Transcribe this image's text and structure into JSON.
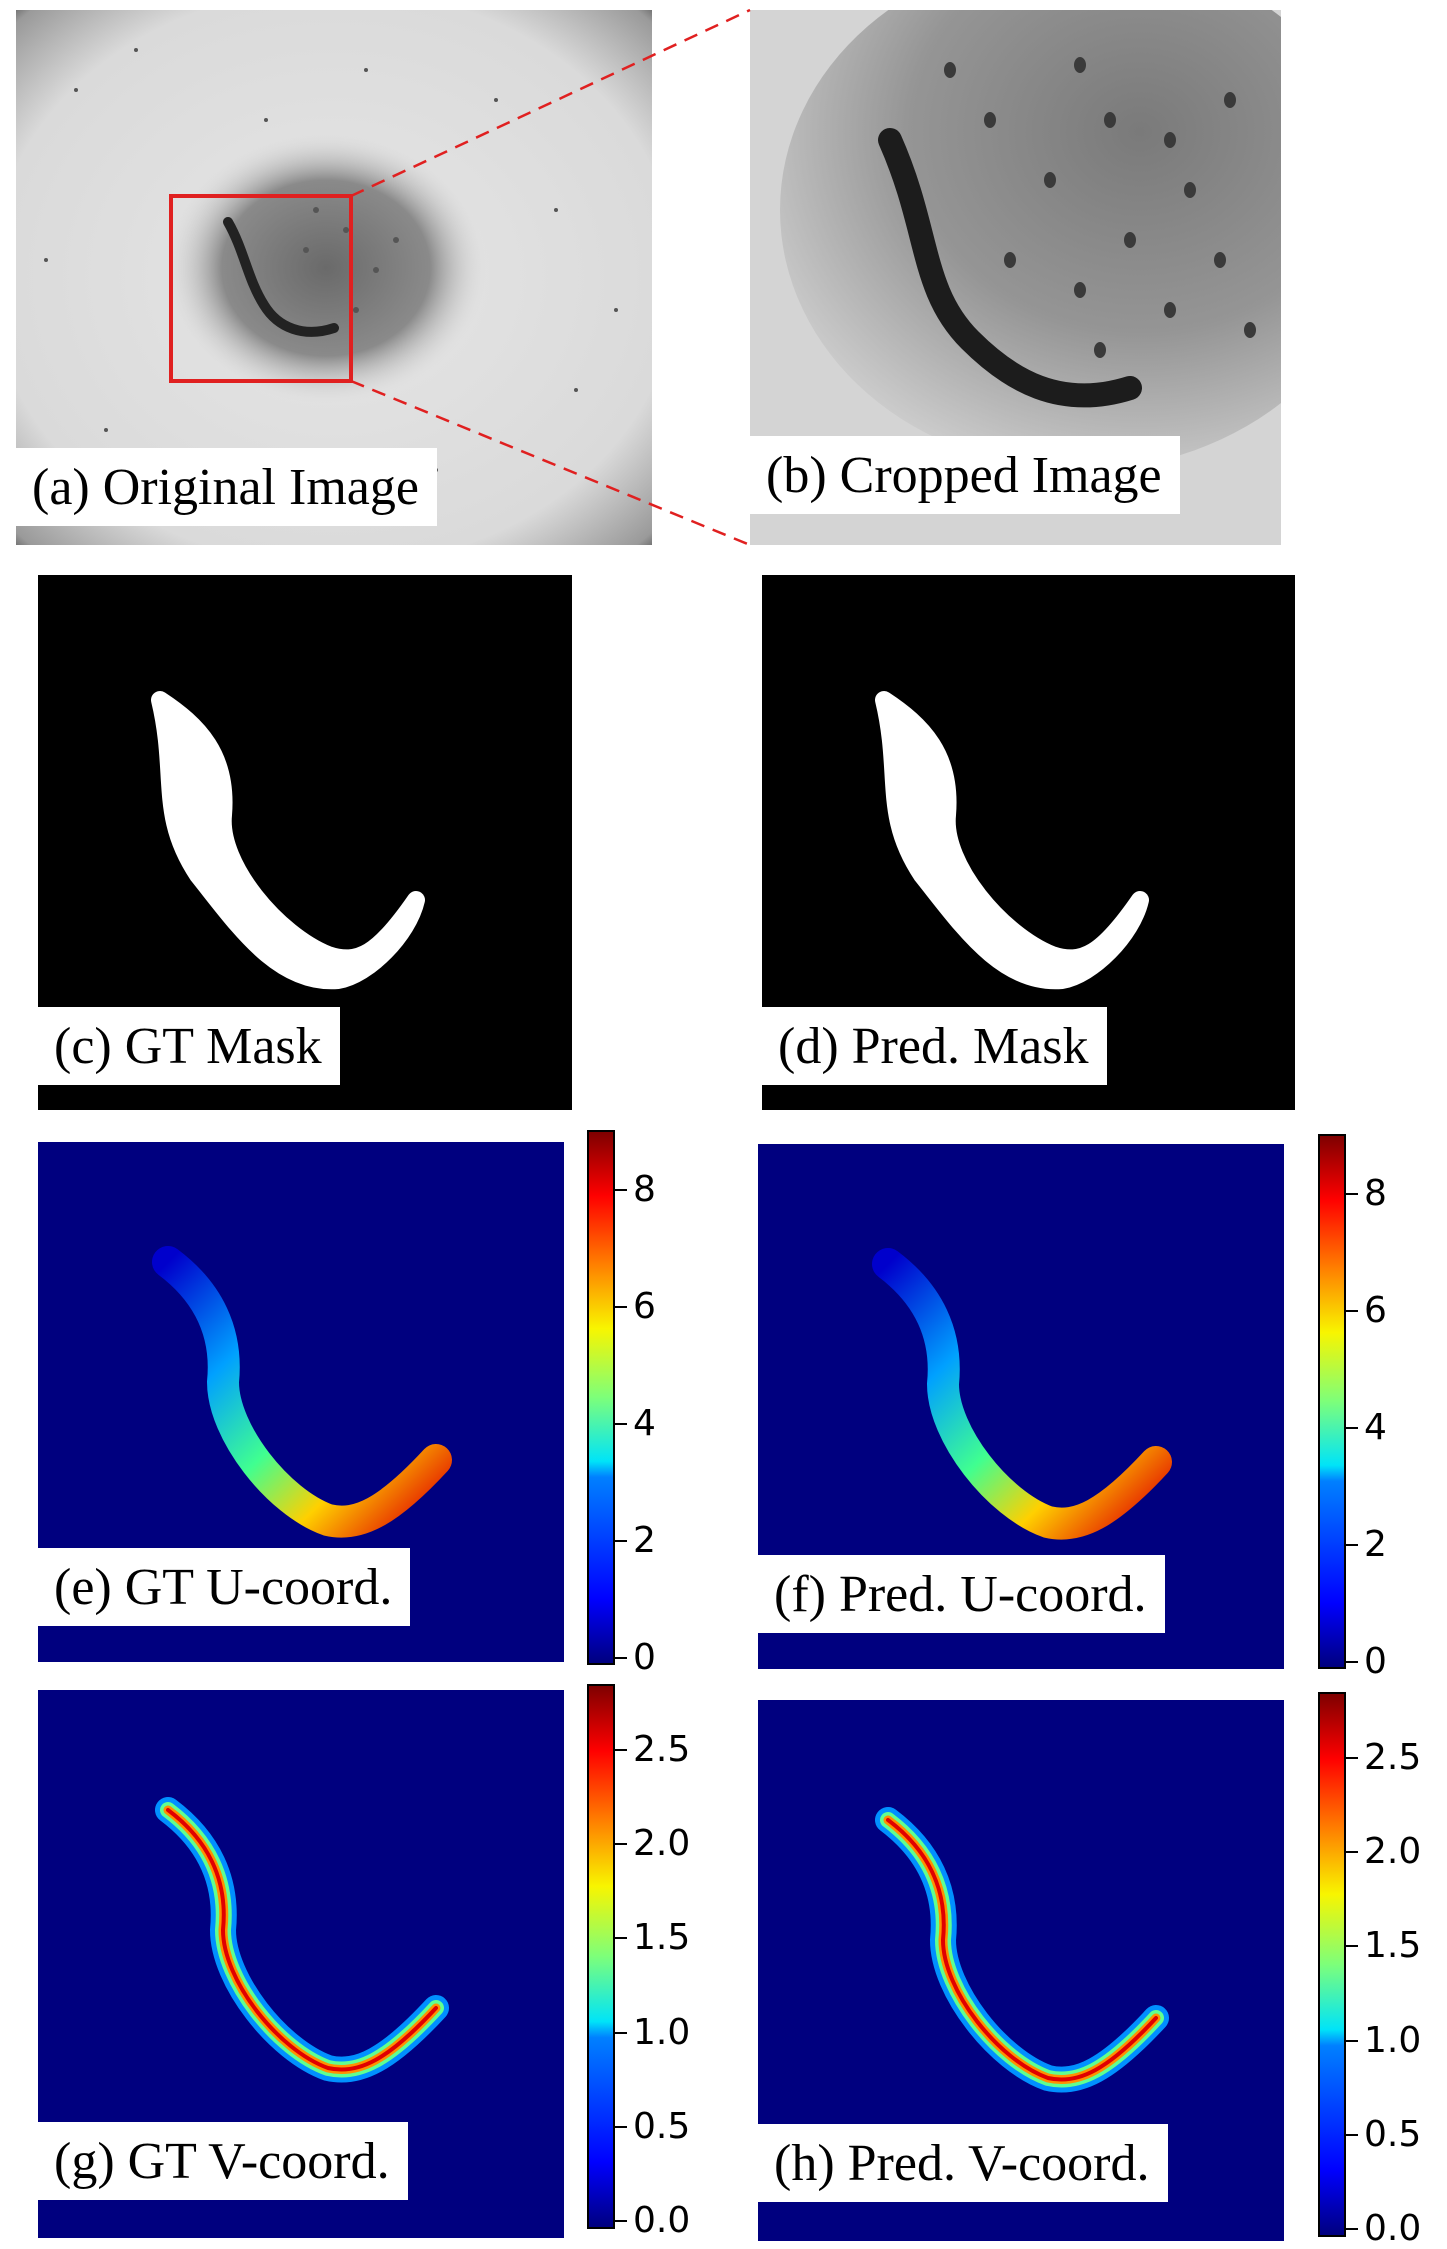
{
  "panels": {
    "a": {
      "caption": "(a) Original Image"
    },
    "b": {
      "caption": "(b) Cropped Image"
    },
    "c": {
      "caption": "(c) GT Mask"
    },
    "d": {
      "caption": "(d) Pred. Mask"
    },
    "e": {
      "caption": "(e) GT U-coord.",
      "colorbar_ticks": [
        "0",
        "2",
        "4",
        "6",
        "8"
      ]
    },
    "f": {
      "caption": "(f) Pred. U-coord.",
      "colorbar_ticks": [
        "0",
        "2",
        "4",
        "6",
        "8"
      ]
    },
    "g": {
      "caption": "(g) GT V-coord.",
      "colorbar_ticks": [
        "0.0",
        "0.5",
        "1.0",
        "1.5",
        "2.0",
        "2.5"
      ]
    },
    "h": {
      "caption": "(h) Pred. V-coord.",
      "colorbar_ticks": [
        "0.0",
        "0.5",
        "1.0",
        "1.5",
        "2.0",
        "2.5"
      ]
    }
  },
  "colors": {
    "field_background": "#00007f",
    "crop_box": "#e02020",
    "mask_background": "#000000",
    "mask_foreground": "#ffffff"
  }
}
